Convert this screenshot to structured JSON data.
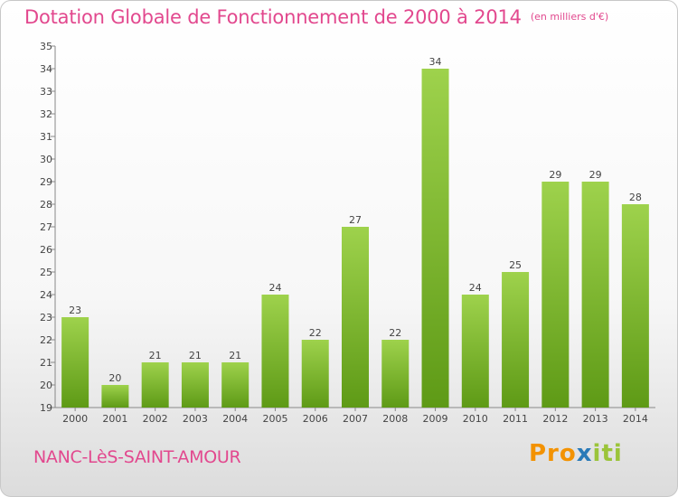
{
  "title": "Dotation Globale de Fonctionnement de 2000 à 2014",
  "subtitle": "(en milliers d'€)",
  "commune": "NANC-LèS-SAINT-AMOUR",
  "logo": {
    "part1": "Pro",
    "part2": "x",
    "part3": "iti"
  },
  "colors": {
    "title": "#e2488e",
    "bar_light": "#9ed24c",
    "bar_dark": "#5e9a16",
    "axis": "#888888"
  },
  "chart_data": {
    "type": "bar",
    "title": "Dotation Globale de Fonctionnement de 2000 à 2014",
    "subtitle": "(en milliers d'€)",
    "xlabel": "",
    "ylabel": "",
    "categories": [
      "2000",
      "2001",
      "2002",
      "2003",
      "2004",
      "2005",
      "2006",
      "2007",
      "2008",
      "2009",
      "2010",
      "2011",
      "2012",
      "2013",
      "2014"
    ],
    "values": [
      23,
      20,
      21,
      21,
      21,
      24,
      22,
      27,
      22,
      34,
      24,
      25,
      29,
      29,
      28
    ],
    "ylim": [
      19,
      35
    ],
    "yticks": [
      19,
      20,
      21,
      22,
      23,
      24,
      25,
      26,
      27,
      28,
      29,
      30,
      31,
      32,
      33,
      34,
      35
    ],
    "grid": false,
    "data_labels": true
  }
}
